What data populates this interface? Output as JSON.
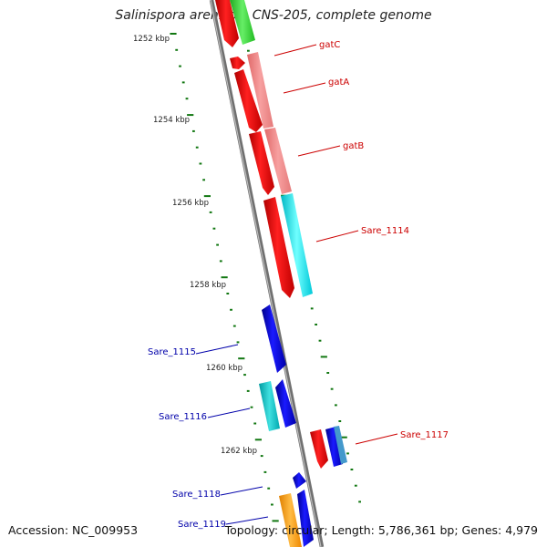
{
  "title": "Salinispora arenicola CNS-205, complete genome",
  "footer": {
    "accession": "Accession: NC_009953",
    "summary": "Topology: circular; Length: 5,786,361 bp; Genes: 4,979"
  },
  "ticks": [
    {
      "label": "1252 kbp"
    },
    {
      "label": "1254 kbp"
    },
    {
      "label": "1256 kbp"
    },
    {
      "label": "1258 kbp"
    },
    {
      "label": "1260 kbp"
    },
    {
      "label": "1262 kbp"
    }
  ],
  "gene_labels": {
    "gatC": "gatC",
    "gatA": "gatA",
    "gatB": "gatB",
    "sare_1114": "Sare_1114",
    "sare_1115": "Sare_1115",
    "sare_1116": "Sare_1116",
    "sare_1117": "Sare_1117",
    "sare_1118": "Sare_1118",
    "sare_1119": "Sare_1119"
  },
  "colors": {
    "forward_cds": "#ff0000",
    "reverse_cds": "#0000ee",
    "forward_label": "#cc0000",
    "reverse_label": "#0000aa",
    "pink_feature": "#f08080",
    "cyan_feature": "#00e5ee",
    "green_feature": "#33cc33",
    "orange_feature": "#ff9900",
    "backbone": "#888888",
    "tick_marks": "#117711"
  }
}
